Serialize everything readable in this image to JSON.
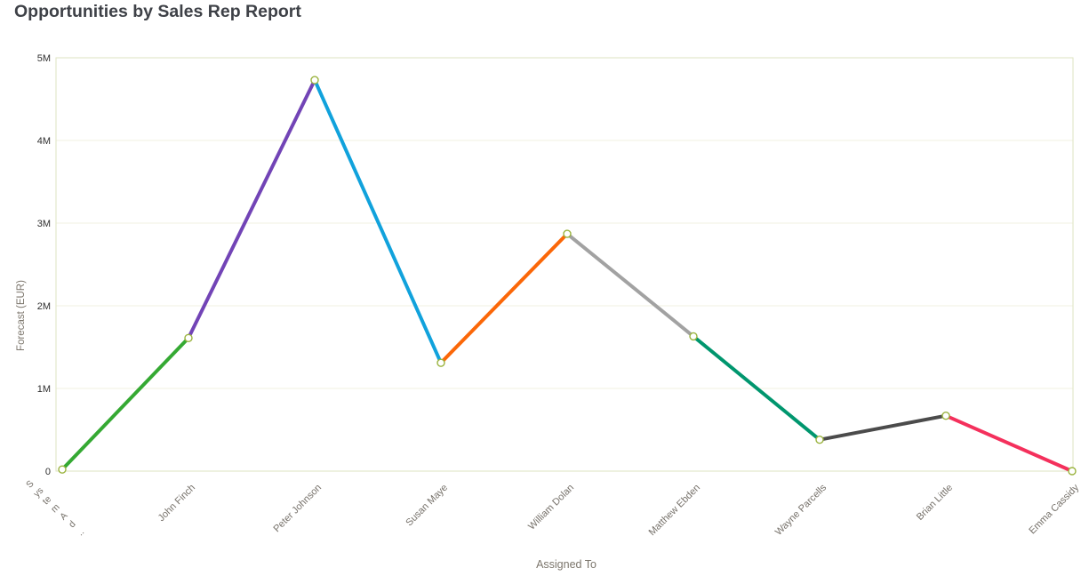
{
  "title": "Opportunities by Sales Rep Report",
  "chart_data": {
    "type": "line",
    "title": "Opportunities by Sales Rep Report",
    "xlabel": "Assigned To",
    "ylabel": "Forecast (EUR)",
    "ylim": [
      0,
      5000000
    ],
    "y_tick_labels": [
      "0",
      "1M",
      "2M",
      "3M",
      "4M",
      "5M"
    ],
    "grid": true,
    "legend": "none",
    "categories": [
      "System Ad..",
      "John Finch",
      "Peter Johnson",
      "Susan Maye",
      "William Dolan",
      "Matthew Ebden",
      "Wayne Parcells",
      "Brian Little",
      "Emma Cassidy"
    ],
    "values": [
      20000,
      1610000,
      4730000,
      1310000,
      2870000,
      1630000,
      380000,
      670000,
      0
    ],
    "first_category_wrapped_lines": [
      "S",
      "ys",
      "te",
      "m",
      "A",
      "d",
      ".."
    ],
    "segment_colors": [
      "#35a933",
      "#7244b6",
      "#11a2dc",
      "#fb6708",
      "#a2a2a2",
      "#00966e",
      "#4b4b4b",
      "#f4305c"
    ],
    "marker": {
      "fill": "#ffffff",
      "stroke": "#9ab33e"
    }
  },
  "colors": {
    "title_text": "#3e4147",
    "axis_border": "#dde3c2",
    "gridline": "#f2f1e0",
    "tick_text": "#2e2e2e",
    "category_text": "#76716a",
    "axis_title_text": "#7c766c",
    "background": "#ffffff"
  }
}
